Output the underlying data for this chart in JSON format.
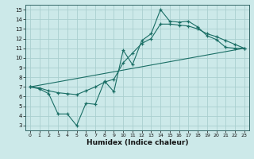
{
  "xlabel": "Humidex (Indice chaleur)",
  "xlim": [
    -0.5,
    23.5
  ],
  "ylim": [
    2.5,
    15.5
  ],
  "xticks": [
    0,
    1,
    2,
    3,
    4,
    5,
    6,
    7,
    8,
    9,
    10,
    11,
    12,
    13,
    14,
    15,
    16,
    17,
    18,
    19,
    20,
    21,
    22,
    23
  ],
  "yticks": [
    3,
    4,
    5,
    6,
    7,
    8,
    9,
    10,
    11,
    12,
    13,
    14,
    15
  ],
  "bg_color": "#cce9e9",
  "grid_color": "#aacfcf",
  "line_color": "#1a6e65",
  "line1_x": [
    0,
    1,
    2,
    3,
    4,
    5,
    6,
    7,
    8,
    9,
    10,
    11,
    12,
    13,
    14,
    15,
    16,
    17,
    18,
    19,
    20,
    21,
    22,
    23
  ],
  "line1_y": [
    7.0,
    6.8,
    6.3,
    4.2,
    4.2,
    3.0,
    5.3,
    5.2,
    7.6,
    6.5,
    10.8,
    9.3,
    11.8,
    12.5,
    15.0,
    13.8,
    13.7,
    13.8,
    13.2,
    12.3,
    11.9,
    11.1,
    11.0,
    11.0
  ],
  "line2_x": [
    0,
    1,
    2,
    3,
    4,
    5,
    6,
    7,
    8,
    9,
    10,
    11,
    12,
    13,
    14,
    15,
    16,
    17,
    18,
    19,
    20,
    21,
    22,
    23
  ],
  "line2_y": [
    7.0,
    6.9,
    6.6,
    6.4,
    6.3,
    6.2,
    6.6,
    7.0,
    7.5,
    7.8,
    9.5,
    10.5,
    11.5,
    12.0,
    13.5,
    13.5,
    13.4,
    13.3,
    13.0,
    12.5,
    12.2,
    11.8,
    11.4,
    11.0
  ],
  "line3_x": [
    0,
    23
  ],
  "line3_y": [
    7.0,
    11.0
  ]
}
